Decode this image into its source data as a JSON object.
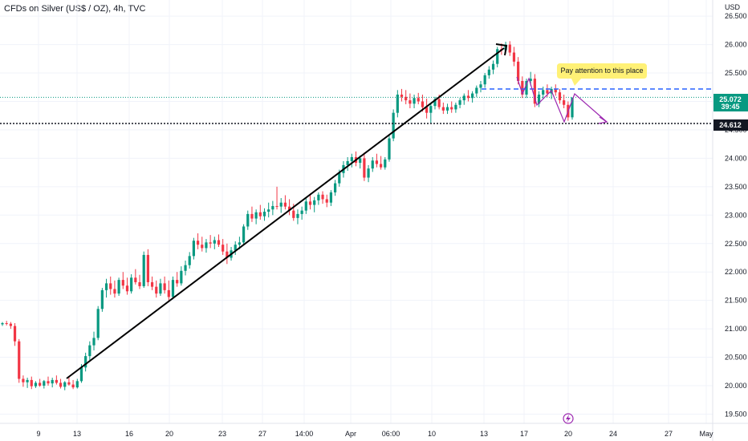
{
  "header": {
    "title": "CFDs on Silver (US$ / OZ), 4h, TVC"
  },
  "chart_data": {
    "type": "candlestick",
    "title": "CFDs on Silver (US$ / OZ), 4h, TVC",
    "currency_label": "USD",
    "y_ticks": [
      "19.500",
      "20.000",
      "20.500",
      "21.000",
      "21.500",
      "22.000",
      "22.500",
      "23.000",
      "23.500",
      "24.000",
      "24.500",
      "25.000",
      "25.500",
      "26.000",
      "26.500"
    ],
    "x_tick_labels": [
      "9",
      "13",
      "16",
      "20",
      "23",
      "27",
      "14:00",
      "Apr",
      "06:00",
      "10",
      "13",
      "17",
      "20",
      "24",
      "27",
      "May"
    ],
    "ylim": [
      19.3,
      26.7
    ],
    "current_price": {
      "value": "25.072",
      "countdown": "39:45",
      "color": "#089981"
    },
    "level_price": {
      "value": "24.612",
      "color": "#131722"
    },
    "colors": {
      "up": "#089981",
      "down": "#f23645",
      "trendline": "#000000",
      "dashed_line": "#2962ff",
      "arrows": "#9c27b0",
      "note_bg": "#fff176"
    },
    "annotation": {
      "text": "Pay attention to this place"
    },
    "grid": true,
    "candles": [
      [
        21.08,
        21.12,
        21.05,
        21.1
      ],
      [
        21.1,
        21.14,
        21.06,
        21.09
      ],
      [
        21.09,
        21.12,
        21.0,
        21.05
      ],
      [
        21.05,
        21.1,
        20.7,
        20.78
      ],
      [
        20.78,
        20.82,
        20.05,
        20.12
      ],
      [
        20.12,
        20.18,
        19.98,
        20.06
      ],
      [
        20.06,
        20.14,
        19.96,
        20.1
      ],
      [
        20.1,
        20.16,
        19.94,
        19.99
      ],
      [
        19.99,
        20.08,
        19.96,
        20.05
      ],
      [
        20.05,
        20.12,
        19.98,
        20.0
      ],
      [
        20.0,
        20.1,
        19.95,
        20.08
      ],
      [
        20.08,
        20.16,
        20.0,
        20.04
      ],
      [
        20.04,
        20.14,
        19.97,
        20.1
      ],
      [
        20.1,
        20.18,
        20.02,
        20.05
      ],
      [
        20.05,
        20.12,
        19.95,
        19.98
      ],
      [
        19.98,
        20.08,
        19.92,
        20.06
      ],
      [
        20.06,
        20.15,
        20.0,
        20.02
      ],
      [
        20.02,
        20.1,
        19.94,
        19.97
      ],
      [
        19.97,
        20.12,
        19.95,
        20.08
      ],
      [
        20.08,
        20.38,
        20.05,
        20.32
      ],
      [
        20.32,
        20.58,
        20.25,
        20.52
      ],
      [
        20.52,
        20.78,
        20.45,
        20.71
      ],
      [
        20.71,
        20.95,
        20.62,
        20.84
      ],
      [
        20.84,
        21.4,
        20.8,
        21.35
      ],
      [
        21.35,
        21.72,
        21.3,
        21.68
      ],
      [
        21.68,
        21.88,
        21.55,
        21.8
      ],
      [
        21.8,
        21.92,
        21.6,
        21.7
      ],
      [
        21.7,
        21.85,
        21.55,
        21.62
      ],
      [
        21.62,
        21.9,
        21.58,
        21.86
      ],
      [
        21.86,
        22.0,
        21.7,
        21.76
      ],
      [
        21.76,
        21.9,
        21.6,
        21.66
      ],
      [
        21.66,
        21.96,
        21.62,
        21.9
      ],
      [
        21.9,
        22.05,
        21.78,
        21.82
      ],
      [
        21.82,
        21.95,
        21.7,
        21.75
      ],
      [
        21.75,
        22.36,
        21.72,
        22.3
      ],
      [
        22.3,
        22.4,
        21.75,
        21.82
      ],
      [
        21.82,
        21.92,
        21.68,
        21.74
      ],
      [
        21.74,
        21.85,
        21.55,
        21.62
      ],
      [
        21.62,
        21.88,
        21.58,
        21.8
      ],
      [
        21.8,
        21.92,
        21.62,
        21.68
      ],
      [
        21.68,
        21.85,
        21.5,
        21.56
      ],
      [
        21.56,
        21.92,
        21.52,
        21.86
      ],
      [
        21.86,
        22.0,
        21.74,
        21.8
      ],
      [
        21.8,
        22.1,
        21.76,
        22.02
      ],
      [
        22.02,
        22.2,
        21.94,
        22.12
      ],
      [
        22.12,
        22.35,
        22.06,
        22.28
      ],
      [
        22.28,
        22.6,
        22.22,
        22.55
      ],
      [
        22.55,
        22.68,
        22.4,
        22.48
      ],
      [
        22.48,
        22.62,
        22.36,
        22.42
      ],
      [
        22.42,
        22.58,
        22.34,
        22.52
      ],
      [
        22.52,
        22.65,
        22.42,
        22.5
      ],
      [
        22.5,
        22.62,
        22.4,
        22.56
      ],
      [
        22.56,
        22.66,
        22.44,
        22.48
      ],
      [
        22.48,
        22.58,
        22.3,
        22.36
      ],
      [
        22.36,
        22.5,
        22.14,
        22.25
      ],
      [
        22.25,
        22.44,
        22.2,
        22.38
      ],
      [
        22.38,
        22.54,
        22.3,
        22.48
      ],
      [
        22.48,
        22.62,
        22.4,
        22.52
      ],
      [
        22.52,
        22.84,
        22.48,
        22.8
      ],
      [
        22.8,
        23.08,
        22.74,
        23.02
      ],
      [
        23.02,
        23.15,
        22.88,
        22.94
      ],
      [
        22.94,
        23.1,
        22.84,
        23.05
      ],
      [
        23.05,
        23.18,
        22.92,
        22.98
      ],
      [
        22.98,
        23.12,
        22.9,
        23.06
      ],
      [
        23.06,
        23.22,
        22.96,
        23.1
      ],
      [
        23.1,
        23.25,
        23.0,
        23.16
      ],
      [
        23.16,
        23.5,
        23.1,
        23.15
      ],
      [
        23.15,
        23.3,
        23.04,
        23.22
      ],
      [
        23.22,
        23.35,
        23.1,
        23.15
      ],
      [
        23.15,
        23.28,
        23.0,
        23.08
      ],
      [
        23.08,
        23.2,
        22.9,
        22.95
      ],
      [
        22.95,
        23.1,
        22.84,
        23.02
      ],
      [
        23.02,
        23.15,
        22.92,
        23.08
      ],
      [
        23.08,
        23.3,
        23.02,
        23.24
      ],
      [
        23.24,
        23.38,
        23.1,
        23.18
      ],
      [
        23.18,
        23.32,
        23.05,
        23.26
      ],
      [
        23.26,
        23.4,
        23.18,
        23.36
      ],
      [
        23.36,
        23.42,
        23.2,
        23.28
      ],
      [
        23.28,
        23.36,
        23.14,
        23.22
      ],
      [
        23.22,
        23.44,
        23.16,
        23.4
      ],
      [
        23.4,
        23.62,
        23.34,
        23.56
      ],
      [
        23.56,
        23.8,
        23.5,
        23.74
      ],
      [
        23.74,
        23.95,
        23.66,
        23.88
      ],
      [
        23.88,
        24.02,
        23.78,
        23.95
      ],
      [
        23.95,
        24.08,
        23.84,
        24.02
      ],
      [
        24.02,
        24.12,
        23.86,
        23.92
      ],
      [
        23.92,
        24.05,
        23.82,
        24.0
      ],
      [
        24.0,
        24.1,
        23.6,
        23.66
      ],
      [
        23.66,
        23.88,
        23.58,
        23.82
      ],
      [
        23.82,
        24.02,
        23.76,
        23.96
      ],
      [
        23.96,
        24.08,
        23.84,
        23.9
      ],
      [
        23.9,
        24.04,
        23.8,
        23.84
      ],
      [
        23.84,
        24.02,
        23.8,
        23.98
      ],
      [
        23.98,
        24.4,
        23.94,
        24.35
      ],
      [
        24.35,
        24.86,
        24.3,
        24.8
      ],
      [
        24.8,
        25.2,
        24.72,
        25.12
      ],
      [
        25.12,
        25.22,
        25.0,
        25.08
      ],
      [
        25.08,
        25.2,
        24.95,
        25.02
      ],
      [
        25.02,
        25.14,
        24.88,
        24.96
      ],
      [
        24.96,
        25.12,
        24.88,
        25.06
      ],
      [
        25.06,
        25.15,
        24.95,
        25.0
      ],
      [
        25.0,
        25.12,
        24.82,
        24.9
      ],
      [
        24.9,
        25.05,
        24.7,
        24.8
      ],
      [
        24.8,
        24.96,
        24.62,
        24.92
      ],
      [
        24.92,
        25.08,
        24.86,
        25.04
      ],
      [
        25.04,
        25.12,
        24.86,
        24.9
      ],
      [
        24.9,
        24.98,
        24.78,
        24.84
      ],
      [
        24.84,
        24.96,
        24.78,
        24.9
      ],
      [
        24.9,
        25.0,
        24.8,
        24.86
      ],
      [
        24.86,
        24.98,
        24.8,
        24.94
      ],
      [
        24.94,
        25.06,
        24.88,
        25.02
      ],
      [
        25.02,
        25.14,
        24.94,
        25.1
      ],
      [
        25.1,
        25.2,
        25.0,
        25.06
      ],
      [
        25.06,
        25.18,
        24.98,
        25.14
      ],
      [
        25.14,
        25.28,
        25.08,
        25.24
      ],
      [
        25.24,
        25.36,
        25.16,
        25.3
      ],
      [
        25.3,
        25.5,
        25.24,
        25.46
      ],
      [
        25.46,
        25.62,
        25.4,
        25.56
      ],
      [
        25.56,
        25.72,
        25.48,
        25.66
      ],
      [
        25.66,
        25.96,
        25.6,
        25.92
      ],
      [
        25.92,
        26.02,
        25.82,
        25.9
      ],
      [
        25.9,
        26.05,
        25.84,
        26.0
      ],
      [
        26.0,
        26.06,
        25.8,
        25.86
      ],
      [
        25.86,
        25.96,
        25.62,
        25.7
      ],
      [
        25.7,
        25.78,
        25.3,
        25.36
      ],
      [
        25.36,
        25.44,
        25.06,
        25.12
      ],
      [
        25.12,
        25.4,
        25.06,
        25.36
      ],
      [
        25.36,
        25.52,
        25.28,
        25.4
      ],
      [
        25.4,
        25.48,
        24.9,
        24.96
      ],
      [
        24.96,
        25.18,
        24.9,
        25.12
      ],
      [
        25.12,
        25.26,
        25.04,
        25.2
      ],
      [
        25.2,
        25.3,
        25.08,
        25.14
      ],
      [
        25.14,
        25.26,
        25.04,
        25.22
      ],
      [
        25.22,
        25.3,
        25.1,
        25.16
      ],
      [
        25.16,
        25.22,
        24.96,
        25.02
      ],
      [
        25.02,
        25.12,
        24.88,
        24.94
      ],
      [
        24.94,
        25.0,
        24.66,
        24.72
      ],
      [
        24.72,
        25.06,
        24.68,
        25.07
      ]
    ]
  }
}
